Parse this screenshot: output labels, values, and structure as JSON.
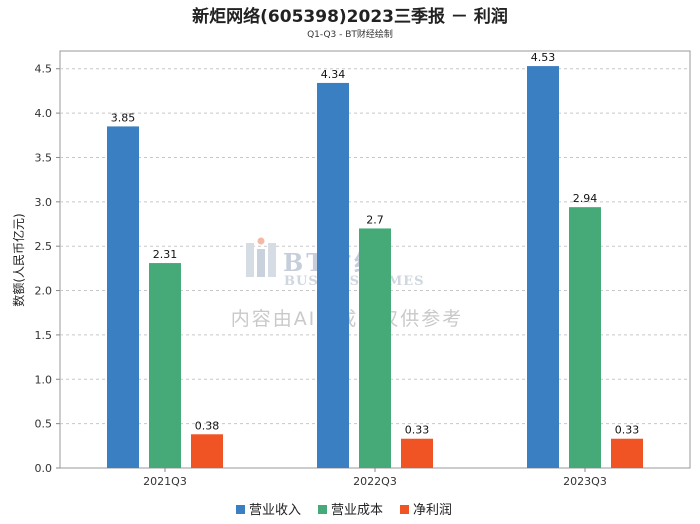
{
  "chart_data": {
    "type": "bar",
    "title": "新炬网络(605398)2023三季报 － 利润",
    "subtitle": "Q1-Q3 - BT财经绘制",
    "ylabel": "数额(人民币亿元)",
    "xlabel": "",
    "ylim": [
      0,
      4.7
    ],
    "yticks": [
      "0.0",
      "0.5",
      "1.0",
      "1.5",
      "2.0",
      "2.5",
      "3.0",
      "3.5",
      "4.0",
      "4.5"
    ],
    "grid": true,
    "legend_position": "bottom",
    "categories": [
      "2021Q3",
      "2022Q3",
      "2023Q3"
    ],
    "series": [
      {
        "name": "营业收入",
        "color": "#3a7fc1",
        "values": [
          3.85,
          4.34,
          4.53
        ],
        "labels": [
          "3.85",
          "4.34",
          "4.53"
        ]
      },
      {
        "name": "营业成本",
        "color": "#45aa78",
        "values": [
          2.31,
          2.7,
          2.94
        ],
        "labels": [
          "2.31",
          "2.7",
          "2.94"
        ]
      },
      {
        "name": "净利润",
        "color": "#f05424",
        "values": [
          0.38,
          0.33,
          0.33
        ],
        "labels": [
          "0.38",
          "0.33",
          "0.33"
        ]
      }
    ]
  },
  "watermark": {
    "brand": "BT财经",
    "brand_en": "BUSINESSTIMES",
    "note": "内容由AI生成，仅供参考"
  }
}
